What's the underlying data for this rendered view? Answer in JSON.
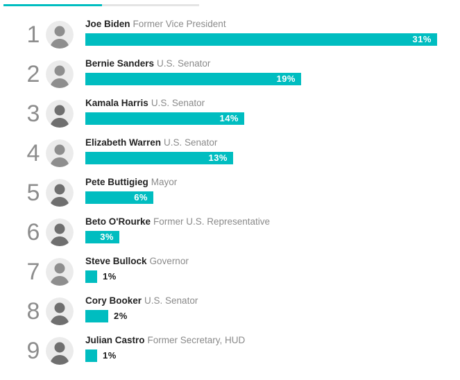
{
  "accent_color": "#00bdc0",
  "top_indicator": {
    "active_color": "#00bdc0",
    "track_color": "#e4e4e4"
  },
  "chart_data": {
    "type": "bar",
    "orientation": "horizontal",
    "title": "",
    "xlabel": "",
    "ylabel": "",
    "unit": "%",
    "bar_color": "#00bdc0",
    "value_label_inside_color": "#ffffff",
    "value_label_outside_color": "#1a1a1a",
    "xlim": [
      0,
      33
    ],
    "categories": [
      "Joe Biden",
      "Bernie Sanders",
      "Kamala Harris",
      "Elizabeth Warren",
      "Pete Buttigieg",
      "Beto O'Rourke",
      "Steve Bullock",
      "Cory Booker",
      "Julian Castro"
    ],
    "values": [
      31,
      19,
      14,
      13,
      6,
      3,
      1,
      2,
      1
    ],
    "value_labels": [
      "31%",
      "19%",
      "14%",
      "13%",
      "6%",
      "3%",
      "1%",
      "2%",
      "1%"
    ]
  },
  "rows": [
    {
      "rank": "1",
      "name": "Joe Biden",
      "title": "Former Vice President",
      "value": 31,
      "label": "31%"
    },
    {
      "rank": "2",
      "name": "Bernie Sanders",
      "title": "U.S. Senator",
      "value": 19,
      "label": "19%"
    },
    {
      "rank": "3",
      "name": "Kamala Harris",
      "title": "U.S. Senator",
      "value": 14,
      "label": "14%"
    },
    {
      "rank": "4",
      "name": "Elizabeth Warren",
      "title": "U.S. Senator",
      "value": 13,
      "label": "13%"
    },
    {
      "rank": "5",
      "name": "Pete Buttigieg",
      "title": "Mayor",
      "value": 6,
      "label": "6%"
    },
    {
      "rank": "6",
      "name": "Beto O'Rourke",
      "title": "Former U.S. Representative",
      "value": 3,
      "label": "3%"
    },
    {
      "rank": "7",
      "name": "Steve Bullock",
      "title": "Governor",
      "value": 1,
      "label": "1%"
    },
    {
      "rank": "8",
      "name": "Cory Booker",
      "title": "U.S. Senator",
      "value": 2,
      "label": "2%"
    },
    {
      "rank": "9",
      "name": "Julian Castro",
      "title": "Former Secretary, HUD",
      "value": 1,
      "label": "1%"
    }
  ]
}
